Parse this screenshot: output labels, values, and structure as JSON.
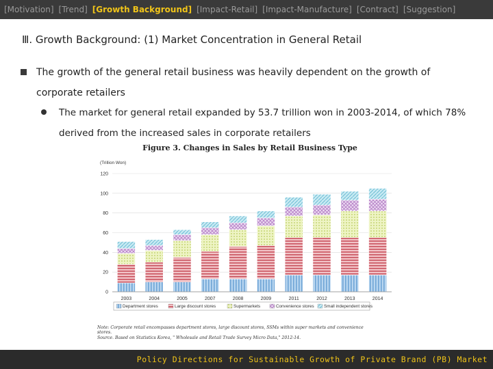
{
  "nav": {
    "items": [
      "[Motivation]",
      "[Trend]",
      "[Growth Background]",
      "[Impact-Retail]",
      "[Impact-Manufacture]",
      "[Contract]",
      "[Suggestion]"
    ],
    "active_index": 2
  },
  "slide": {
    "title": "Ⅲ. Growth Background: (1) Market Concentration in General Retail",
    "bullet1_line1": "The growth of the general retail business was heavily dependent on the growth of",
    "bullet1_line2": "corporate retailers",
    "bullet2_line1": "The market for general retail expanded by 53.7 trillion won in 2003-2014, of which 78%",
    "bullet2_line2": "derived from the increased sales in corporate retailers"
  },
  "figure": {
    "title": "Figure 3.  Changes  in  Sales  by  Retail  Business  Type",
    "note_line1": "Note: Corporate retail encompasses department stores, large discount stores, SSMs within super markets and convenience",
    "note_line2": "stores.",
    "source": "Source. Based on Statistics Korea, \" Wholesale and Retail Trade Survey Micro Data,\" 2012-14."
  },
  "footer": {
    "text": "Policy Directions for Sustainable Growth of Private Brand (PB) Market"
  },
  "colors": {
    "nav_bg": "#3a3a3a",
    "nav_active": "#f0c419",
    "footer_bg": "#2b2b2b",
    "footer_text": "#f0c419"
  },
  "chart_data": {
    "type": "bar",
    "stacked": true,
    "title": "",
    "unit_label": "(Trillion Won)",
    "categories": [
      "2003",
      "2004",
      "2005",
      "2007",
      "2008",
      "2009",
      "2011",
      "2012",
      "2013",
      "2014"
    ],
    "ylim": [
      0,
      120
    ],
    "yticks": [
      0,
      20,
      40,
      60,
      80,
      100,
      120
    ],
    "grid": true,
    "legend_position": "bottom",
    "series": [
      {
        "name": "Department stores",
        "color": "#9dc3e6",
        "values": [
          9,
          10,
          10,
          13,
          13,
          13,
          17,
          17,
          17,
          17
        ]
      },
      {
        "name": "Large discount stores",
        "color": "#e6a0a8",
        "values": [
          19,
          20,
          25,
          28,
          33,
          34,
          38,
          38,
          38,
          38
        ]
      },
      {
        "name": "Supermarkets",
        "color": "#e4eeaa",
        "values": [
          11,
          12,
          17,
          17,
          17,
          20,
          22,
          23,
          27,
          27
        ]
      },
      {
        "name": "Convenience stores",
        "color": "#e6ccee",
        "values": [
          5,
          5,
          6,
          7,
          7,
          8,
          9,
          10,
          11,
          12
        ]
      },
      {
        "name": "Small independent stores",
        "color": "#b3e0ec",
        "values": [
          7,
          6,
          5,
          6,
          7,
          7,
          10,
          11,
          9,
          11
        ]
      }
    ]
  }
}
